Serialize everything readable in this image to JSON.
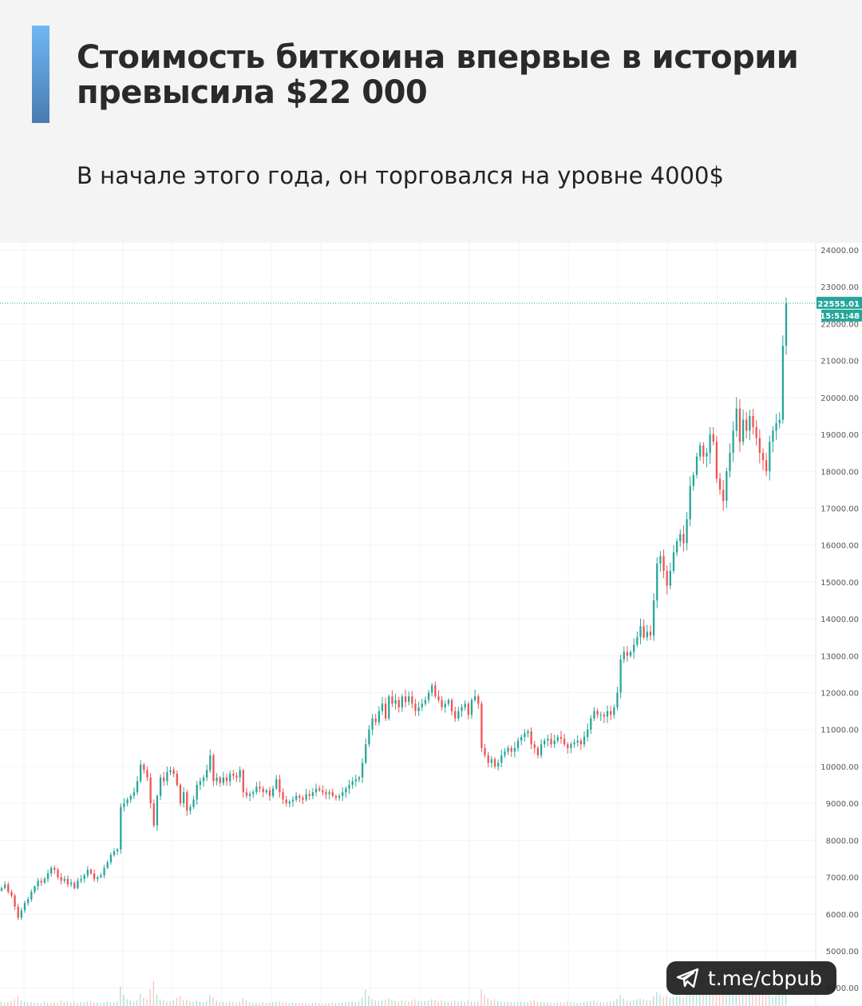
{
  "header": {
    "title": "Стоимость биткоина впервые в истории превысила $22 000",
    "subtitle": "В начале этого года, он торговался на уровне 4000$"
  },
  "chart_data": {
    "type": "candlestick",
    "ylim": [
      4500,
      24200
    ],
    "y_ticks": [
      "24000.00",
      "23000.00",
      "22000.00",
      "21000.00",
      "20000.00",
      "19000.00",
      "18000.00",
      "17000.00",
      "16000.00",
      "15000.00",
      "14000.00",
      "13000.00",
      "12000.00",
      "11000.00",
      "10000.00",
      "9000.00",
      "8000.00",
      "7000.00",
      "6000.00",
      "5000.00",
      "4000.00"
    ],
    "last_price_label": "22555.01",
    "last_price": 22555.01,
    "countdown_label": "15:51:48",
    "grid": true,
    "colors": {
      "up": "#26a69a",
      "down": "#ef5350",
      "grid": "#f0f3fa",
      "axis_text": "#555555"
    },
    "closes": [
      6700,
      6800,
      6600,
      6500,
      6200,
      5900,
      6100,
      6300,
      6400,
      6600,
      6750,
      6900,
      6850,
      6950,
      7100,
      7250,
      7200,
      7000,
      6900,
      6950,
      6800,
      6850,
      6700,
      6900,
      6950,
      7050,
      7200,
      7100,
      6950,
      7000,
      7050,
      7250,
      7400,
      7600,
      7700,
      7750,
      8900,
      9000,
      9100,
      9200,
      9300,
      9600,
      10050,
      9900,
      9700,
      9000,
      8400,
      9200,
      9700,
      9600,
      9850,
      9900,
      9800,
      9500,
      9000,
      9300,
      8800,
      8900,
      9100,
      9500,
      9600,
      9700,
      9900,
      10300,
      9600,
      9700,
      9550,
      9700,
      9600,
      9800,
      9750,
      9700,
      9900,
      9300,
      9200,
      9250,
      9300,
      9450,
      9400,
      9300,
      9350,
      9200,
      9400,
      9650,
      9300,
      9100,
      9000,
      9050,
      9100,
      9200,
      9150,
      9100,
      9250,
      9200,
      9300,
      9400,
      9350,
      9300,
      9250,
      9300,
      9200,
      9150,
      9200,
      9300,
      9400,
      9500,
      9600,
      9650,
      9700,
      10100,
      10600,
      11000,
      11300,
      11200,
      11500,
      11700,
      11300,
      11900,
      11700,
      11800,
      11600,
      11900,
      11750,
      11900,
      11700,
      11500,
      11600,
      11700,
      11800,
      12000,
      12200,
      11900,
      11800,
      11600,
      11700,
      11800,
      11500,
      11300,
      11500,
      11600,
      11700,
      11400,
      11800,
      11900,
      11700,
      10500,
      10300,
      10100,
      10200,
      10000,
      10100,
      10300,
      10400,
      10500,
      10400,
      10500,
      10700,
      10800,
      10900,
      10950,
      10600,
      10500,
      10300,
      10600,
      10700,
      10750,
      10600,
      10700,
      10800,
      10750,
      10600,
      10500,
      10600,
      10650,
      10700,
      10600,
      10800,
      11000,
      11300,
      11500,
      11400,
      11400,
      11350,
      11500,
      11400,
      11600,
      12000,
      12900,
      13100,
      13000,
      13100,
      13300,
      13500,
      13800,
      13500,
      13650,
      13550,
      14500,
      15500,
      15700,
      15300,
      14900,
      15300,
      15800,
      16100,
      16300,
      16050,
      16700,
      17600,
      17900,
      18400,
      18700,
      18400,
      18500,
      19000,
      18800,
      17800,
      17500,
      17200,
      18000,
      18500,
      19100,
      19700,
      18800,
      19400,
      19100,
      19500,
      19200,
      18900,
      18500,
      18300,
      18000,
      18800,
      19100,
      19300,
      19400,
      21400,
      22555
    ],
    "volumes": [
      0.08,
      0.06,
      0.07,
      0.09,
      0.12,
      0.18,
      0.1,
      0.08,
      0.06,
      0.07,
      0.05,
      0.06,
      0.05,
      0.08,
      0.06,
      0.05,
      0.07,
      0.06,
      0.1,
      0.07,
      0.09,
      0.06,
      0.08,
      0.05,
      0.07,
      0.06,
      0.08,
      0.09,
      0.06,
      0.07,
      0.05,
      0.06,
      0.08,
      0.07,
      0.06,
      0.08,
      0.35,
      0.2,
      0.12,
      0.1,
      0.08,
      0.1,
      0.22,
      0.15,
      0.12,
      0.3,
      0.45,
      0.2,
      0.12,
      0.1,
      0.08,
      0.09,
      0.1,
      0.15,
      0.18,
      0.1,
      0.12,
      0.09,
      0.08,
      0.1,
      0.08,
      0.07,
      0.09,
      0.2,
      0.15,
      0.1,
      0.08,
      0.07,
      0.06,
      0.08,
      0.07,
      0.06,
      0.08,
      0.14,
      0.1,
      0.07,
      0.06,
      0.05,
      0.06,
      0.07,
      0.05,
      0.06,
      0.07,
      0.08,
      0.09,
      0.07,
      0.06,
      0.05,
      0.06,
      0.05,
      0.05,
      0.06,
      0.05,
      0.04,
      0.05,
      0.06,
      0.05,
      0.04,
      0.05,
      0.05,
      0.06,
      0.05,
      0.05,
      0.06,
      0.07,
      0.08,
      0.09,
      0.07,
      0.08,
      0.15,
      0.3,
      0.18,
      0.12,
      0.1,
      0.09,
      0.1,
      0.12,
      0.14,
      0.1,
      0.09,
      0.08,
      0.1,
      0.09,
      0.08,
      0.1,
      0.12,
      0.09,
      0.08,
      0.09,
      0.1,
      0.12,
      0.11,
      0.09,
      0.1,
      0.08,
      0.07,
      0.09,
      0.1,
      0.08,
      0.09,
      0.07,
      0.1,
      0.08,
      0.07,
      0.09,
      0.3,
      0.2,
      0.14,
      0.1,
      0.12,
      0.09,
      0.08,
      0.07,
      0.08,
      0.07,
      0.06,
      0.07,
      0.08,
      0.07,
      0.06,
      0.09,
      0.1,
      0.08,
      0.07,
      0.06,
      0.07,
      0.06,
      0.05,
      0.06,
      0.07,
      0.06,
      0.08,
      0.07,
      0.06,
      0.05,
      0.06,
      0.07,
      0.08,
      0.09,
      0.1,
      0.08,
      0.07,
      0.06,
      0.07,
      0.08,
      0.09,
      0.12,
      0.2,
      0.14,
      0.1,
      0.09,
      0.1,
      0.12,
      0.14,
      0.12,
      0.1,
      0.1,
      0.18,
      0.25,
      0.2,
      0.16,
      0.18,
      0.15,
      0.16,
      0.18,
      0.17,
      0.15,
      0.2,
      0.25,
      0.22,
      0.2,
      0.24,
      0.22,
      0.2,
      0.25,
      0.22,
      0.3,
      0.28,
      0.35,
      0.25,
      0.22,
      0.26,
      0.28,
      0.24,
      0.22,
      0.2,
      0.22,
      0.2,
      0.24,
      0.22,
      0.21,
      0.25,
      0.2,
      0.18,
      0.19,
      0.2,
      0.4,
      0.5
    ]
  },
  "badge": {
    "label": "t.me/cbpub"
  }
}
